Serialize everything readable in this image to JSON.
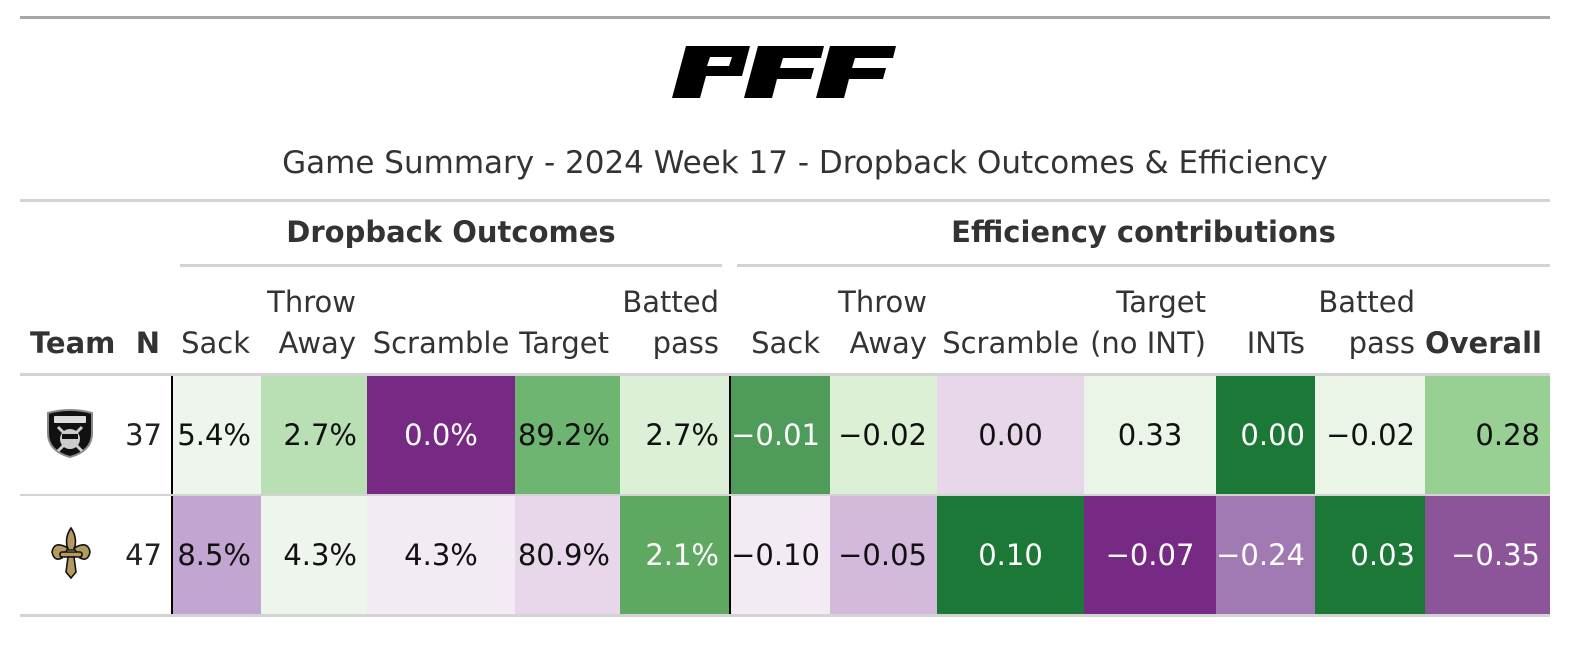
{
  "logo": {
    "text": "PFF"
  },
  "title": "Game Summary - 2024 Week 17 - Dropback Outcomes & Efficiency",
  "spanners": {
    "outcomes": "Dropback Outcomes",
    "efficiency": "Efficiency contributions"
  },
  "columns": {
    "team": "Team",
    "n": "N",
    "o_sack": "Sack",
    "o_throwaway": [
      "Throw",
      "Away"
    ],
    "o_scramble": "Scramble",
    "o_target": "Target",
    "o_batted": [
      "Batted",
      "pass"
    ],
    "e_sack": "Sack",
    "e_throwaway": [
      "Throw",
      "Away"
    ],
    "e_scramble": "Scramble",
    "e_target": [
      "Target",
      "(no INT)"
    ],
    "e_ints": "INTs",
    "e_batted": [
      "Batted",
      "pass"
    ],
    "e_overall": "Overall"
  },
  "rows": [
    {
      "team_icon": "raiders-logo",
      "n": "37",
      "outcomes": [
        "5.4%",
        "2.7%",
        "0.0%",
        "89.2%",
        "2.7%"
      ],
      "efficiency": [
        "−0.01",
        "−0.02",
        "0.00",
        "0.33",
        "0.00",
        "−0.02",
        "0.28"
      ],
      "colors": {
        "outcomes": [
          "#eef5ec",
          "#b8e0b4",
          "#762a83",
          "#6db571",
          "#dbf0d6"
        ],
        "efficiency": [
          "#4f9c5a",
          "#dcf0d6",
          "#e8d7ea",
          "#eaf5e7",
          "#1b7837",
          "#eaf5e7",
          "#98cf93"
        ]
      }
    },
    {
      "team_icon": "saints-logo",
      "n": "47",
      "outcomes": [
        "8.5%",
        "4.3%",
        "4.3%",
        "80.9%",
        "2.1%"
      ],
      "efficiency": [
        "−0.10",
        "−0.05",
        "0.10",
        "−0.07",
        "−0.24",
        "0.03",
        "−0.35"
      ],
      "colors": {
        "outcomes": [
          "#c2a5d1",
          "#eef5ec",
          "#f3ebf4",
          "#e8d7ea",
          "#5ea862"
        ],
        "efficiency": [
          "#f3ebf4",
          "#d3b9dc",
          "#1b7837",
          "#762a83",
          "#a179b3",
          "#1b7837",
          "#8c559a"
        ]
      }
    }
  ]
}
